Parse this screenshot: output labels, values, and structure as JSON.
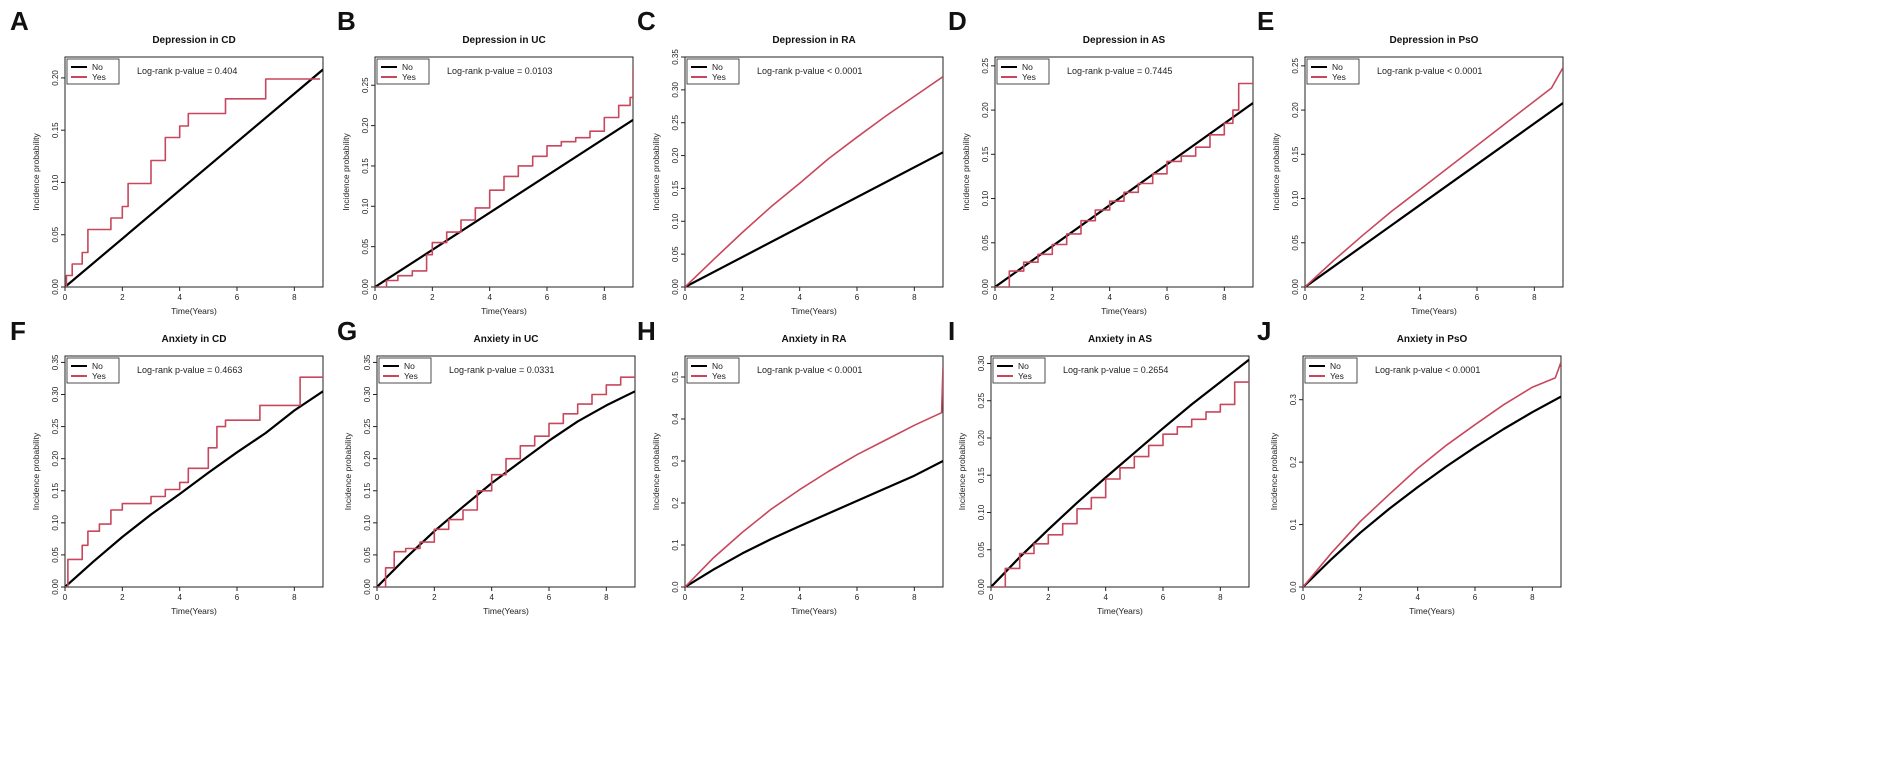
{
  "figure": {
    "series_colors": {
      "No": "#000000",
      "Yes": "#C8475C"
    },
    "legend_entries": [
      "No",
      "Yes"
    ]
  },
  "chart_data": [
    {
      "id": "A",
      "type": "line",
      "title": "Depression in CD",
      "xlabel": "Time(Years)",
      "ylabel": "Incidence probability",
      "xlim": [
        0,
        9
      ],
      "ylim": [
        0,
        0.22
      ],
      "xticks": [
        0,
        2,
        4,
        6,
        8
      ],
      "xtick_labels": [
        "0",
        "2",
        "4",
        "6",
        "8"
      ],
      "yticks": [
        0,
        0.05,
        0.1,
        0.15,
        0.2
      ],
      "ytick_labels": [
        "0.00",
        "0.05",
        "0.10",
        "0.15",
        "0.20"
      ],
      "annotation": "Log-rank p-value = 0.404",
      "series": [
        {
          "name": "No",
          "step": false,
          "x": [
            0,
            9
          ],
          "y": [
            0,
            0.208
          ]
        },
        {
          "name": "Yes",
          "step": true,
          "x": [
            0,
            0.05,
            0.25,
            0.6,
            0.8,
            1.6,
            2.0,
            2.2,
            3.0,
            3.5,
            4.0,
            4.3,
            5.6,
            7.0,
            8.9
          ],
          "y": [
            0,
            0.011,
            0.022,
            0.033,
            0.055,
            0.066,
            0.077,
            0.099,
            0.121,
            0.143,
            0.154,
            0.166,
            0.18,
            0.199,
            0.199
          ]
        }
      ]
    },
    {
      "id": "B",
      "type": "line",
      "title": "Depression in UC",
      "xlabel": "Time(Years)",
      "ylabel": "Incidence probability",
      "xlim": [
        0,
        9
      ],
      "ylim": [
        0,
        0.285
      ],
      "xticks": [
        0,
        2,
        4,
        6,
        8
      ],
      "xtick_labels": [
        "0",
        "2",
        "4",
        "6",
        "8"
      ],
      "yticks": [
        0,
        0.05,
        0.1,
        0.15,
        0.2,
        0.25
      ],
      "ytick_labels": [
        "0.00",
        "0.05",
        "0.10",
        "0.15",
        "0.20",
        "0.25"
      ],
      "annotation": "Log-rank p-value = 0.0103",
      "series": [
        {
          "name": "No",
          "step": false,
          "x": [
            0,
            9
          ],
          "y": [
            0,
            0.207
          ]
        },
        {
          "name": "Yes",
          "step": true,
          "x": [
            0,
            0.4,
            0.8,
            1.3,
            1.8,
            2.0,
            2.5,
            3.0,
            3.5,
            4.0,
            4.5,
            5.0,
            5.5,
            6.0,
            6.5,
            7.0,
            7.5,
            8.0,
            8.5,
            8.9,
            9.0
          ],
          "y": [
            0,
            0.008,
            0.014,
            0.02,
            0.04,
            0.055,
            0.068,
            0.083,
            0.098,
            0.12,
            0.137,
            0.15,
            0.162,
            0.175,
            0.18,
            0.185,
            0.193,
            0.21,
            0.225,
            0.235,
            0.27
          ]
        }
      ]
    },
    {
      "id": "C",
      "type": "line",
      "title": "Depression in RA",
      "xlabel": "Time(Years)",
      "ylabel": "Incidence probability",
      "xlim": [
        0,
        9
      ],
      "ylim": [
        0,
        0.35
      ],
      "xticks": [
        0,
        2,
        4,
        6,
        8
      ],
      "xtick_labels": [
        "0",
        "2",
        "4",
        "6",
        "8"
      ],
      "yticks": [
        0,
        0.05,
        0.1,
        0.15,
        0.2,
        0.25,
        0.3,
        0.35
      ],
      "ytick_labels": [
        "0.00",
        "0.05",
        "0.10",
        "0.15",
        "0.20",
        "0.25",
        "0.30",
        "0.35"
      ],
      "annotation": "Log-rank p-value < 0.0001",
      "series": [
        {
          "name": "No",
          "step": false,
          "x": [
            0,
            9
          ],
          "y": [
            0,
            0.205
          ]
        },
        {
          "name": "Yes",
          "step": false,
          "x": [
            0,
            1,
            2,
            3,
            4,
            5,
            6,
            7,
            8,
            9
          ],
          "y": [
            0,
            0.042,
            0.083,
            0.122,
            0.158,
            0.195,
            0.228,
            0.26,
            0.29,
            0.32
          ]
        }
      ]
    },
    {
      "id": "D",
      "type": "line",
      "title": "Depression in AS",
      "xlabel": "Time(Years)",
      "ylabel": "Incidence probability",
      "xlim": [
        0,
        9
      ],
      "ylim": [
        0,
        0.26
      ],
      "xticks": [
        0,
        2,
        4,
        6,
        8
      ],
      "xtick_labels": [
        "0",
        "2",
        "4",
        "6",
        "8"
      ],
      "yticks": [
        0,
        0.05,
        0.1,
        0.15,
        0.2,
        0.25
      ],
      "ytick_labels": [
        "0.00",
        "0.05",
        "0.10",
        "0.15",
        "0.20",
        "0.25"
      ],
      "annotation": "Log-rank p-value = 0.7445",
      "series": [
        {
          "name": "No",
          "step": false,
          "x": [
            0,
            9
          ],
          "y": [
            0,
            0.208
          ]
        },
        {
          "name": "Yes",
          "step": true,
          "x": [
            0,
            0.5,
            1.0,
            1.5,
            2.0,
            2.5,
            3.0,
            3.5,
            4.0,
            4.5,
            5.0,
            5.5,
            6.0,
            6.5,
            7.0,
            7.5,
            8.0,
            8.3,
            8.5,
            9.0
          ],
          "y": [
            0,
            0.018,
            0.028,
            0.037,
            0.048,
            0.06,
            0.075,
            0.087,
            0.097,
            0.107,
            0.117,
            0.128,
            0.142,
            0.148,
            0.158,
            0.172,
            0.185,
            0.2,
            0.23,
            0.232
          ]
        }
      ]
    },
    {
      "id": "E",
      "type": "line",
      "title": "Depression in PsO",
      "xlabel": "Time(Years)",
      "ylabel": "Incidence probability",
      "xlim": [
        0,
        9
      ],
      "ylim": [
        0,
        0.26
      ],
      "xticks": [
        0,
        2,
        4,
        6,
        8
      ],
      "xtick_labels": [
        "0",
        "2",
        "4",
        "6",
        "8"
      ],
      "yticks": [
        0,
        0.05,
        0.1,
        0.15,
        0.2,
        0.25
      ],
      "ytick_labels": [
        "0.00",
        "0.05",
        "0.10",
        "0.15",
        "0.20",
        "0.25"
      ],
      "annotation": "Log-rank p-value < 0.0001",
      "series": [
        {
          "name": "No",
          "step": false,
          "x": [
            0,
            9
          ],
          "y": [
            0,
            0.208
          ]
        },
        {
          "name": "Yes",
          "step": false,
          "x": [
            0,
            1,
            2,
            3,
            4,
            5,
            6,
            7,
            8,
            8.6,
            9.0
          ],
          "y": [
            0,
            0.03,
            0.058,
            0.085,
            0.11,
            0.135,
            0.16,
            0.185,
            0.21,
            0.225,
            0.248
          ]
        }
      ]
    },
    {
      "id": "F",
      "type": "line",
      "title": "Anxiety in CD",
      "xlabel": "Time(Years)",
      "ylabel": "Incidence probability",
      "xlim": [
        0,
        9
      ],
      "ylim": [
        0,
        0.36
      ],
      "xticks": [
        0,
        2,
        4,
        6,
        8
      ],
      "xtick_labels": [
        "0",
        "2",
        "4",
        "6",
        "8"
      ],
      "yticks": [
        0,
        0.05,
        0.1,
        0.15,
        0.2,
        0.25,
        0.3,
        0.35
      ],
      "ytick_labels": [
        "0.00",
        "0.05",
        "0.10",
        "0.15",
        "0.20",
        "0.25",
        "0.30",
        "0.35"
      ],
      "annotation": "Log-rank p-value = 0.4663",
      "series": [
        {
          "name": "No",
          "step": false,
          "x": [
            0,
            1,
            2,
            3,
            4,
            5,
            6,
            7,
            8,
            9
          ],
          "y": [
            0,
            0.04,
            0.078,
            0.113,
            0.145,
            0.178,
            0.21,
            0.24,
            0.275,
            0.305
          ]
        },
        {
          "name": "Yes",
          "step": true,
          "x": [
            0,
            0.1,
            0.6,
            0.8,
            1.2,
            1.6,
            2.0,
            3.0,
            3.5,
            4.0,
            4.3,
            5.0,
            5.3,
            5.6,
            6.0,
            6.8,
            8.2,
            9.0
          ],
          "y": [
            0,
            0.043,
            0.065,
            0.087,
            0.098,
            0.12,
            0.13,
            0.141,
            0.152,
            0.163,
            0.185,
            0.217,
            0.25,
            0.26,
            0.26,
            0.283,
            0.327,
            0.327
          ]
        }
      ]
    },
    {
      "id": "G",
      "type": "line",
      "title": "Anxiety in UC",
      "xlabel": "Time(Years)",
      "ylabel": "Incidence probability",
      "xlim": [
        0,
        9
      ],
      "ylim": [
        0,
        0.36
      ],
      "xticks": [
        0,
        2,
        4,
        6,
        8
      ],
      "xtick_labels": [
        "0",
        "2",
        "4",
        "6",
        "8"
      ],
      "yticks": [
        0,
        0.05,
        0.1,
        0.15,
        0.2,
        0.25,
        0.3,
        0.35
      ],
      "ytick_labels": [
        "0.00",
        "0.05",
        "0.10",
        "0.15",
        "0.20",
        "0.25",
        "0.30",
        "0.35"
      ],
      "annotation": "Log-rank p-value = 0.0331",
      "series": [
        {
          "name": "No",
          "step": false,
          "x": [
            0,
            1,
            2,
            3,
            4,
            5,
            6,
            7,
            8,
            9
          ],
          "y": [
            0,
            0.045,
            0.087,
            0.125,
            0.162,
            0.195,
            0.228,
            0.258,
            0.283,
            0.305
          ]
        },
        {
          "name": "Yes",
          "step": true,
          "x": [
            0,
            0.3,
            0.6,
            1.0,
            1.5,
            2.0,
            2.5,
            3.0,
            3.5,
            4.0,
            4.5,
            5.0,
            5.5,
            6.0,
            6.5,
            7.0,
            7.5,
            8.0,
            8.5,
            9.0
          ],
          "y": [
            0,
            0.03,
            0.055,
            0.06,
            0.07,
            0.09,
            0.105,
            0.12,
            0.15,
            0.175,
            0.2,
            0.22,
            0.235,
            0.255,
            0.27,
            0.285,
            0.3,
            0.315,
            0.327,
            0.327
          ]
        }
      ]
    },
    {
      "id": "H",
      "type": "line",
      "title": "Anxiety in RA",
      "xlabel": "Time(Years)",
      "ylabel": "Incidence probability",
      "xlim": [
        0,
        9
      ],
      "ylim": [
        0,
        0.55
      ],
      "xticks": [
        0,
        2,
        4,
        6,
        8
      ],
      "xtick_labels": [
        "0",
        "2",
        "4",
        "6",
        "8"
      ],
      "yticks": [
        0,
        0.1,
        0.2,
        0.3,
        0.4,
        0.5
      ],
      "ytick_labels": [
        "0.0",
        "0.1",
        "0.2",
        "0.3",
        "0.4",
        "0.5"
      ],
      "annotation": "Log-rank p-value < 0.0001",
      "series": [
        {
          "name": "No",
          "step": false,
          "x": [
            0,
            1,
            2,
            3,
            4,
            5,
            6,
            7,
            8,
            9
          ],
          "y": [
            0,
            0.042,
            0.08,
            0.114,
            0.145,
            0.175,
            0.205,
            0.235,
            0.265,
            0.3
          ]
        },
        {
          "name": "Yes",
          "step": false,
          "x": [
            0,
            1,
            2,
            3,
            4,
            5,
            6,
            7,
            8,
            8.95,
            9.0
          ],
          "y": [
            0,
            0.07,
            0.13,
            0.185,
            0.232,
            0.275,
            0.315,
            0.35,
            0.385,
            0.415,
            0.525
          ]
        }
      ]
    },
    {
      "id": "I",
      "type": "line",
      "title": "Anxiety in AS",
      "xlabel": "Time(Years)",
      "ylabel": "Incidence probability",
      "xlim": [
        0,
        9
      ],
      "ylim": [
        0,
        0.31
      ],
      "xticks": [
        0,
        2,
        4,
        6,
        8
      ],
      "xtick_labels": [
        "0",
        "2",
        "4",
        "6",
        "8"
      ],
      "yticks": [
        0,
        0.05,
        0.1,
        0.15,
        0.2,
        0.25,
        0.3
      ],
      "ytick_labels": [
        "0.00",
        "0.05",
        "0.10",
        "0.15",
        "0.20",
        "0.25",
        "0.30"
      ],
      "annotation": "Log-rank p-value = 0.2654",
      "series": [
        {
          "name": "No",
          "step": false,
          "x": [
            0,
            1,
            2,
            3,
            4,
            5,
            6,
            7,
            8,
            9
          ],
          "y": [
            0,
            0.04,
            0.077,
            0.113,
            0.147,
            0.18,
            0.213,
            0.245,
            0.275,
            0.305
          ]
        },
        {
          "name": "Yes",
          "step": true,
          "x": [
            0,
            0.5,
            1.0,
            1.5,
            2.0,
            2.5,
            3.0,
            3.5,
            4.0,
            4.5,
            5.0,
            5.5,
            6.0,
            6.5,
            7.0,
            7.5,
            8.0,
            8.5,
            9.0
          ],
          "y": [
            0,
            0.025,
            0.045,
            0.058,
            0.07,
            0.085,
            0.105,
            0.12,
            0.145,
            0.16,
            0.175,
            0.19,
            0.205,
            0.215,
            0.225,
            0.235,
            0.245,
            0.275,
            0.275
          ]
        }
      ]
    },
    {
      "id": "J",
      "type": "line",
      "title": "Anxiety in PsO",
      "xlabel": "Time(Years)",
      "ylabel": "Incidence probability",
      "xlim": [
        0,
        9
      ],
      "ylim": [
        0,
        0.37
      ],
      "xticks": [
        0,
        2,
        4,
        6,
        8
      ],
      "xtick_labels": [
        "0",
        "2",
        "4",
        "6",
        "8"
      ],
      "yticks": [
        0,
        0.1,
        0.2,
        0.3
      ],
      "ytick_labels": [
        "0.0",
        "0.1",
        "0.2",
        "0.3"
      ],
      "annotation": "Log-rank p-value < 0.0001",
      "series": [
        {
          "name": "No",
          "step": false,
          "x": [
            0,
            1,
            2,
            3,
            4,
            5,
            6,
            7,
            8,
            9
          ],
          "y": [
            0,
            0.045,
            0.087,
            0.125,
            0.16,
            0.193,
            0.224,
            0.253,
            0.28,
            0.305
          ]
        },
        {
          "name": "Yes",
          "step": false,
          "x": [
            0,
            1,
            2,
            3,
            4,
            5,
            6,
            7,
            8,
            8.8,
            9.0
          ],
          "y": [
            0,
            0.055,
            0.105,
            0.148,
            0.19,
            0.227,
            0.26,
            0.292,
            0.32,
            0.335,
            0.36
          ]
        }
      ]
    }
  ]
}
